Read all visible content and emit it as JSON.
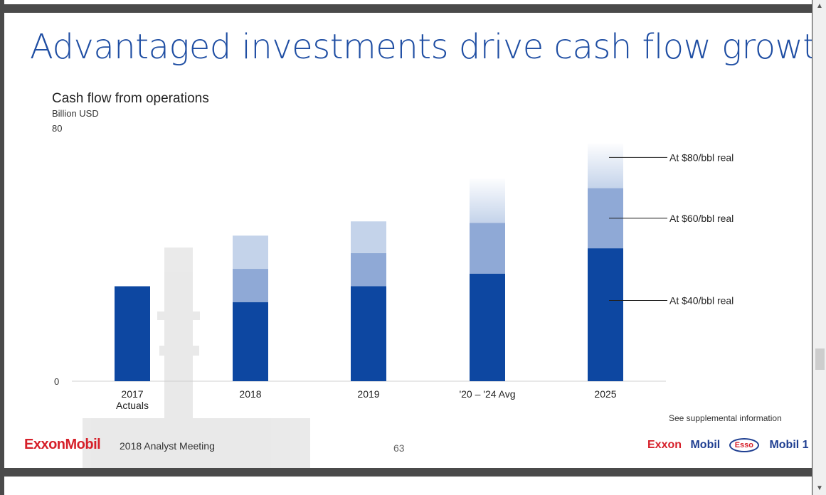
{
  "slide": {
    "title": "Advantaged investments drive cash flow growth",
    "page_number": "63",
    "footer_meeting": "2018 Analyst Meeting",
    "footer_note": "See supplemental information",
    "logo_text": "ExxonMobil",
    "brands": [
      "Exxon",
      "Mobil",
      "Esso",
      "Mobil 1"
    ]
  },
  "colors": {
    "title": "#1f4ea3",
    "base": "#0d47a1",
    "mid": "#8fa9d6",
    "top": "#c4d3ea"
  },
  "chart_data": {
    "type": "bar",
    "stacked": true,
    "title": "Cash flow from operations",
    "ylabel": "Billion USD",
    "ylim": [
      0,
      80
    ],
    "yticks": [
      "0",
      "80"
    ],
    "categories": [
      "2017",
      "2018",
      "2019",
      "'20 – '24 Avg",
      "2025"
    ],
    "category_sublabels": [
      "Actuals",
      "",
      "",
      "",
      ""
    ],
    "series": [
      {
        "name": "At $40/bbl real",
        "values": [
          30,
          25,
          30,
          34,
          42
        ]
      },
      {
        "name": "At $60/bbl real",
        "values": [
          0,
          10.5,
          10.5,
          16,
          19
        ]
      },
      {
        "name": "At $80/bbl real",
        "values": [
          0,
          10.5,
          10,
          14,
          14
        ]
      }
    ]
  }
}
